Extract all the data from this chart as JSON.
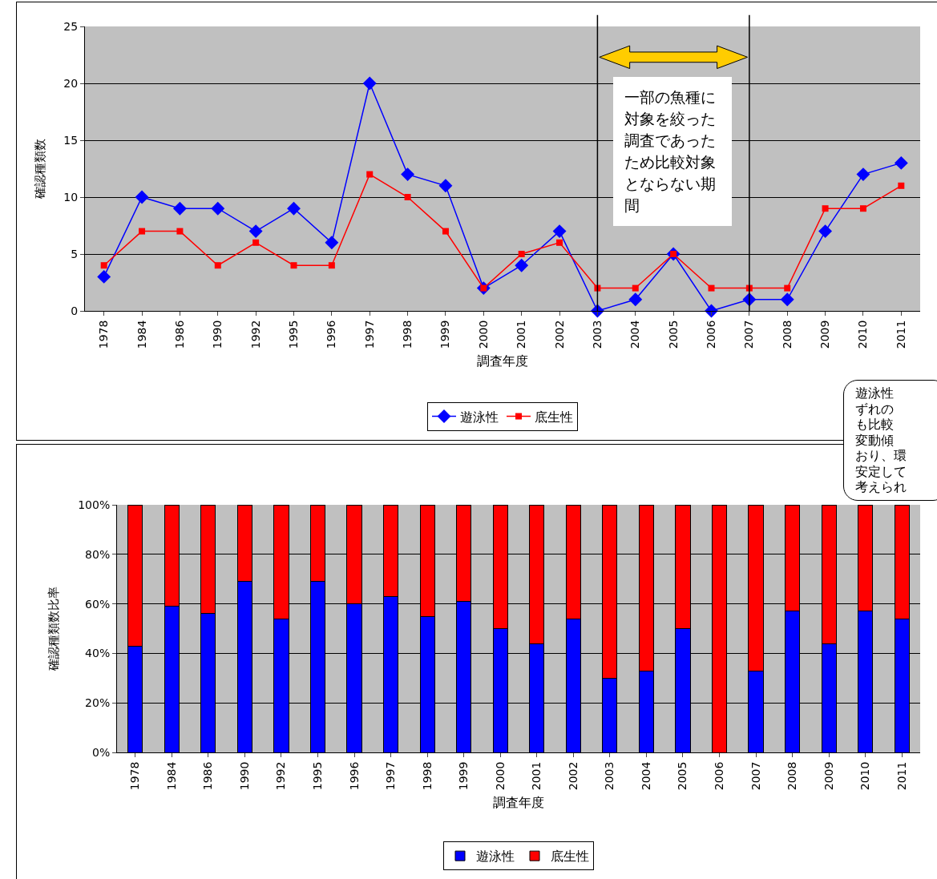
{
  "chart_data": [
    {
      "type": "line",
      "categories": [
        "1978",
        "1984",
        "1986",
        "1990",
        "1992",
        "1995",
        "1996",
        "1997",
        "1998",
        "1999",
        "2000",
        "2001",
        "2002",
        "2003",
        "2004",
        "2005",
        "2006",
        "2007",
        "2008",
        "2009",
        "2010",
        "2011"
      ],
      "series": [
        {
          "name": "遊泳性",
          "color": "#0000ff",
          "marker": "diamond",
          "values": [
            3,
            10,
            9,
            9,
            7,
            9,
            6,
            20,
            12,
            11,
            2,
            4,
            7,
            0,
            1,
            5,
            0,
            1,
            1,
            7,
            12,
            13
          ]
        },
        {
          "name": "底生性",
          "color": "#ff0000",
          "marker": "square",
          "values": [
            4,
            7,
            7,
            4,
            6,
            4,
            4,
            12,
            10,
            7,
            2,
            5,
            6,
            2,
            2,
            5,
            2,
            2,
            2,
            9,
            9,
            11
          ]
        }
      ],
      "xlabel": "調査年度",
      "ylabel": "確認種類数",
      "ylim": [
        0,
        25
      ],
      "yticks": [
        0,
        5,
        10,
        15,
        20,
        25
      ],
      "grid": "y",
      "legend": "bottom",
      "ref_lines": [
        {
          "axis": "x",
          "value": "2003",
          "color": "#000000"
        },
        {
          "axis": "x",
          "value": "2007",
          "color": "#000000"
        }
      ],
      "annotations": [
        "一部の魚種に対象を絞った調査であったため比較対象とならない期間",
        "遊泳性",
        "ずれの",
        "も比較",
        "変動傾",
        "おり、環",
        "安定して",
        "考えられ"
      ]
    },
    {
      "type": "bar",
      "stacked": true,
      "categories": [
        "1978",
        "1984",
        "1986",
        "1990",
        "1992",
        "1995",
        "1996",
        "1997",
        "1998",
        "1999",
        "2000",
        "2001",
        "2002",
        "2003",
        "2004",
        "2005",
        "2006",
        "2007",
        "2008",
        "2009",
        "2010",
        "2011"
      ],
      "series": [
        {
          "name": "遊泳性",
          "color": "#0000ff",
          "values": [
            43,
            59,
            56,
            69,
            54,
            69,
            60,
            63,
            55,
            61,
            50,
            44,
            54,
            30,
            33,
            50,
            0,
            33,
            57,
            44,
            57,
            54
          ]
        },
        {
          "name": "底生性",
          "color": "#ff0000",
          "values": [
            57,
            41,
            44,
            31,
            46,
            31,
            40,
            37,
            45,
            39,
            50,
            56,
            46,
            70,
            67,
            50,
            100,
            67,
            43,
            56,
            43,
            46
          ]
        }
      ],
      "xlabel": "調査年度",
      "ylabel": "確認種類数比率",
      "ylim": [
        0,
        100
      ],
      "yticks": [
        {
          "value": 0,
          "label": "0%"
        },
        {
          "value": 20,
          "label": "20%"
        },
        {
          "value": 40,
          "label": "40%"
        },
        {
          "value": 60,
          "label": "60%"
        },
        {
          "value": 80,
          "label": "80%"
        },
        {
          "value": 100,
          "label": "100%"
        }
      ],
      "grid": "y",
      "legend": "bottom"
    }
  ]
}
